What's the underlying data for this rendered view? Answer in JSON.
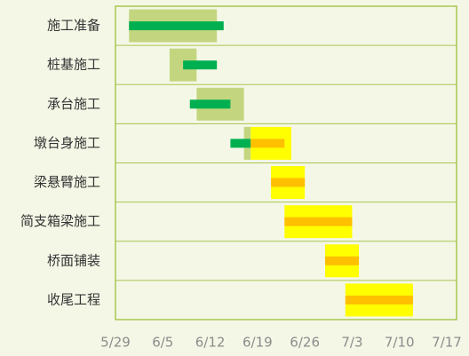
{
  "chart_data": {
    "type": "gantt",
    "categories": [
      "施工准备",
      "桩基施工",
      "承台施工",
      "墩台身施工",
      "梁悬臂施工",
      "简支箱梁施工",
      "桥面铺装",
      "收尾工程"
    ],
    "xlim": [
      "5/29",
      "7/17"
    ],
    "xticks": [
      "5/29",
      "6/5",
      "6/12",
      "6/19",
      "6/26",
      "7/3",
      "7/10",
      "7/17"
    ],
    "bars": [
      {
        "row": 0,
        "kind": "plan",
        "start": "5/31",
        "end": "6/13",
        "color": "#c3d67f"
      },
      {
        "row": 0,
        "kind": "actual",
        "start": "5/31",
        "end": "6/14",
        "color": "#00b050"
      },
      {
        "row": 1,
        "kind": "plan",
        "start": "6/6",
        "end": "6/10",
        "color": "#c3d67f"
      },
      {
        "row": 1,
        "kind": "actual",
        "start": "6/8",
        "end": "6/13",
        "color": "#00b050"
      },
      {
        "row": 2,
        "kind": "plan",
        "start": "6/10",
        "end": "6/17",
        "color": "#c3d67f"
      },
      {
        "row": 2,
        "kind": "actual",
        "start": "6/9",
        "end": "6/15",
        "color": "#00b050"
      },
      {
        "row": 3,
        "kind": "plan",
        "start": "6/17",
        "end": "6/18",
        "color": "#c3d67f"
      },
      {
        "row": 3,
        "kind": "plan",
        "start": "6/18",
        "end": "6/24",
        "color": "#ffff00"
      },
      {
        "row": 3,
        "kind": "actual",
        "start": "6/15",
        "end": "6/18",
        "color": "#00b050"
      },
      {
        "row": 3,
        "kind": "actual",
        "start": "6/18",
        "end": "6/23",
        "color": "#ffc000"
      },
      {
        "row": 4,
        "kind": "plan",
        "start": "6/21",
        "end": "6/26",
        "color": "#ffff00"
      },
      {
        "row": 4,
        "kind": "actual",
        "start": "6/21",
        "end": "6/26",
        "color": "#ffc000"
      },
      {
        "row": 5,
        "kind": "plan",
        "start": "6/23",
        "end": "7/3",
        "color": "#ffff00"
      },
      {
        "row": 5,
        "kind": "actual",
        "start": "6/23",
        "end": "7/3",
        "color": "#ffc000"
      },
      {
        "row": 6,
        "kind": "plan",
        "start": "6/29",
        "end": "7/4",
        "color": "#ffff00"
      },
      {
        "row": 6,
        "kind": "actual",
        "start": "6/29",
        "end": "7/4",
        "color": "#ffc000"
      },
      {
        "row": 7,
        "kind": "plan",
        "start": "7/2",
        "end": "7/12",
        "color": "#ffff00"
      },
      {
        "row": 7,
        "kind": "actual",
        "start": "7/2",
        "end": "7/12",
        "color": "#ffc000"
      }
    ],
    "grid": true
  }
}
